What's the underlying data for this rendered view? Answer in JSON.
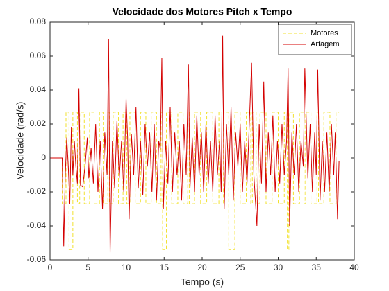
{
  "chart_data": {
    "type": "line",
    "title": "Velocidade dos Motores Pitch x Tempo",
    "xlabel": "Tempo (s)",
    "ylabel": "Velocidade (rad/s)",
    "xlim": [
      0,
      40
    ],
    "xticks": [
      0,
      5,
      10,
      15,
      20,
      25,
      30,
      35,
      40
    ],
    "ylim": [
      -0.06,
      0.08
    ],
    "yticks": [
      -0.06,
      -0.04,
      -0.02,
      0,
      0.02,
      0.04,
      0.06,
      0.08
    ],
    "legend": "upper right",
    "series": [
      {
        "name": "Motores",
        "color": "#f2e230",
        "dash": true,
        "step": "post",
        "x": [
          0,
          1.6,
          2.1,
          2.5,
          3.0,
          3.6,
          3.9,
          4.5,
          5.2,
          5.8,
          6.5,
          7.0,
          7.6,
          7.8,
          8.3,
          9.0,
          9.6,
          10.1,
          10.5,
          11.2,
          11.9,
          12.6,
          13.3,
          14.0,
          14.6,
          14.8,
          15.3,
          16.0,
          16.8,
          17.5,
          18.1,
          18.3,
          19.0,
          19.8,
          20.6,
          21.4,
          22.2,
          22.6,
          22.8,
          23.5,
          24.3,
          25.0,
          25.8,
          26.4,
          26.6,
          27.1,
          27.6,
          28.4,
          29.2,
          30.0,
          30.8,
          31.2,
          31.4,
          32.0,
          32.8,
          33.4,
          33.6,
          34.3,
          35.1,
          35.3,
          36.0,
          36.8,
          37.6,
          38.0
        ],
        "values": [
          0,
          -0.027,
          0.027,
          -0.054,
          0.027,
          -0.027,
          0.027,
          -0.027,
          0.027,
          -0.027,
          0.027,
          -0.027,
          0.027,
          -0.027,
          0.027,
          -0.027,
          0.027,
          -0.027,
          0.027,
          -0.027,
          0.027,
          -0.027,
          0.027,
          -0.027,
          0.027,
          -0.054,
          0.027,
          -0.027,
          0.027,
          -0.027,
          0.027,
          -0.027,
          0.027,
          -0.027,
          0.027,
          -0.027,
          0.027,
          -0.027,
          0.027,
          -0.054,
          0.027,
          -0.027,
          0.027,
          -0.027,
          0.027,
          -0.027,
          0.027,
          -0.027,
          0.027,
          -0.027,
          0.027,
          -0.054,
          0.027,
          -0.027,
          0.027,
          -0.027,
          0.027,
          -0.027,
          0.027,
          -0.027,
          0.027,
          -0.027,
          0.027,
          0.027
        ]
      },
      {
        "name": "Arfagem",
        "color": "#d40000",
        "x": [
          0,
          1.6,
          1.8,
          2.0,
          2.2,
          2.4,
          2.6,
          2.8,
          3.0,
          3.2,
          3.4,
          3.6,
          3.8,
          4.0,
          4.3,
          4.6,
          4.9,
          5.1,
          5.4,
          5.7,
          6.0,
          6.3,
          6.6,
          6.9,
          7.2,
          7.5,
          7.7,
          7.9,
          8.2,
          8.5,
          8.8,
          9.1,
          9.4,
          9.7,
          10.0,
          10.2,
          10.4,
          10.7,
          11.0,
          11.3,
          11.6,
          11.9,
          12.2,
          12.5,
          12.8,
          13.1,
          13.4,
          13.7,
          14.0,
          14.3,
          14.5,
          14.7,
          14.9,
          15.2,
          15.5,
          15.8,
          16.1,
          16.4,
          16.7,
          17.0,
          17.3,
          17.6,
          17.9,
          18.2,
          18.4,
          18.7,
          19.0,
          19.3,
          19.6,
          19.9,
          20.2,
          20.5,
          20.8,
          21.1,
          21.4,
          21.7,
          22.0,
          22.3,
          22.5,
          22.7,
          22.9,
          23.2,
          23.5,
          23.8,
          24.1,
          24.4,
          24.7,
          25.0,
          25.3,
          25.6,
          25.9,
          26.2,
          26.5,
          26.8,
          27.2,
          27.5,
          27.8,
          28.1,
          28.4,
          28.7,
          29.0,
          29.3,
          29.6,
          29.9,
          30.2,
          30.5,
          30.8,
          31.1,
          31.3,
          31.5,
          31.8,
          32.1,
          32.4,
          32.7,
          33.0,
          33.3,
          33.5,
          33.9,
          34.2,
          34.5,
          34.8,
          35.0,
          35.2,
          35.5,
          35.8,
          36.1,
          36.4,
          36.7,
          37.0,
          37.3,
          37.5,
          37.8,
          38.0
        ],
        "values": [
          0,
          0,
          -0.052,
          -0.01,
          0.012,
          -0.005,
          -0.027,
          0.018,
          -0.01,
          0.01,
          -0.005,
          -0.015,
          0.041,
          -0.016,
          -0.017,
          -0.005,
          0.012,
          -0.012,
          0.006,
          -0.015,
          0.02,
          -0.02,
          0.01,
          -0.03,
          0.015,
          -0.01,
          0.07,
          -0.056,
          0.01,
          -0.018,
          0.022,
          -0.012,
          0.01,
          -0.02,
          0.035,
          0.012,
          -0.036,
          0.014,
          -0.01,
          0.03,
          -0.018,
          0.01,
          -0.022,
          0.02,
          -0.005,
          0.015,
          -0.02,
          0.02,
          -0.025,
          0.01,
          0.005,
          0.059,
          -0.03,
          0.01,
          -0.015,
          0.03,
          -0.02,
          0.015,
          -0.01,
          0.01,
          -0.025,
          0.02,
          -0.01,
          0.055,
          -0.018,
          0.012,
          -0.02,
          0.025,
          -0.01,
          0.015,
          -0.02,
          0.02,
          -0.015,
          0.01,
          -0.02,
          0.025,
          -0.01,
          0.01,
          -0.02,
          0.072,
          -0.03,
          0.02,
          -0.01,
          0.03,
          -0.025,
          0.015,
          -0.005,
          0.02,
          -0.02,
          0.01,
          -0.015,
          0.02,
          0.056,
          -0.01,
          -0.04,
          0.02,
          -0.015,
          0.045,
          -0.02,
          0.015,
          -0.01,
          0.025,
          -0.02,
          0.01,
          -0.015,
          0.02,
          -0.01,
          0.01,
          0.053,
          -0.04,
          0.015,
          -0.01,
          0.02,
          -0.02,
          0.01,
          -0.005,
          0.053,
          -0.012,
          0.02,
          -0.02,
          0.015,
          -0.01,
          0.052,
          -0.025,
          0.01,
          -0.02,
          0.015,
          -0.02,
          0.02,
          -0.01,
          0.015,
          -0.036,
          -0.002
        ]
      }
    ]
  }
}
